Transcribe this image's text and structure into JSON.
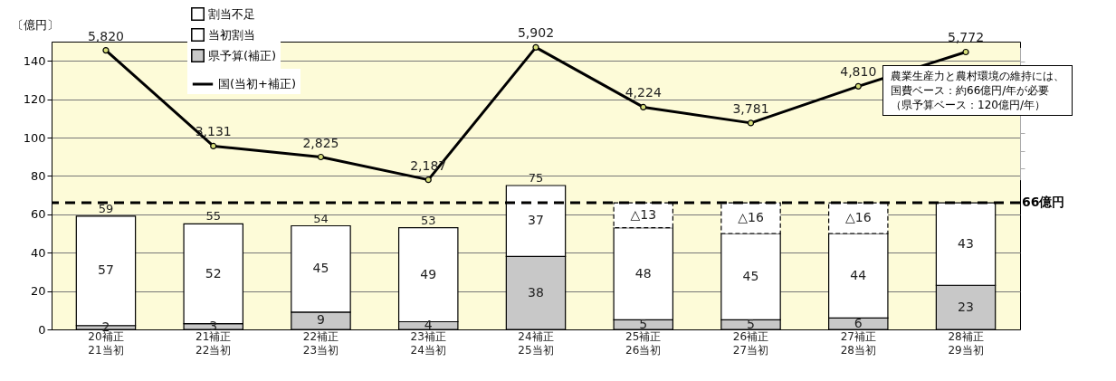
{
  "chart_data": {
    "type": "bar",
    "stacked": true,
    "ylabel": "〔億円〕",
    "categories": [
      "20補正\n21当初",
      "21補正\n22当初",
      "22補正\n23当初",
      "23補正\n24当初",
      "24補正\n25当初",
      "25補正\n26当初",
      "26補正\n27当初",
      "27補正\n28当初",
      "28補正\n29当初"
    ],
    "series": [
      {
        "name": "県予算(補正)",
        "color": "#c8c8c8",
        "values": [
          2,
          3,
          9,
          4,
          38,
          5,
          5,
          6,
          23
        ]
      },
      {
        "name": "当初割当",
        "color": "#ffffff",
        "values": [
          57,
          52,
          45,
          49,
          37,
          48,
          45,
          44,
          43
        ]
      },
      {
        "name": "割当不足",
        "color": "#ffffff",
        "line_style": "dashed",
        "values": [
          null,
          null,
          null,
          null,
          null,
          13,
          16,
          16,
          null
        ],
        "value_labels": [
          null,
          null,
          null,
          null,
          null,
          "△13",
          "△16",
          "△16",
          null
        ]
      },
      {
        "name": "国(当初+補正)",
        "type": "line",
        "axis": "y2",
        "color": "#000000",
        "marker": "circle",
        "line_style": "solid",
        "values": [
          5820,
          3131,
          2825,
          2187,
          5902,
          4224,
          3781,
          4810,
          5772
        ],
        "value_labels": [
          "5,820",
          "3,131",
          "2,825",
          "2,187",
          "5,902",
          "4,224",
          "3,781",
          "4,810",
          "5,772"
        ]
      }
    ],
    "totals": [
      "59",
      "55",
      "54",
      "53",
      "75",
      null,
      null,
      null,
      null
    ],
    "data_labels": true,
    "ylim": [
      0,
      150
    ],
    "yticks": [
      0,
      20,
      40,
      60,
      80,
      100,
      120,
      140
    ],
    "ref_lines": [
      {
        "axis": "y",
        "value": 66,
        "label": "66億円",
        "color": "#000000",
        "line_style": "dashed"
      }
    ],
    "annotations": [
      "農業生産力と農村環境の維持には、",
      "国費ベース：約66億円/年が必要",
      "（県予算ベース：120億円/年）"
    ],
    "grid": "y",
    "legend": "top left"
  }
}
